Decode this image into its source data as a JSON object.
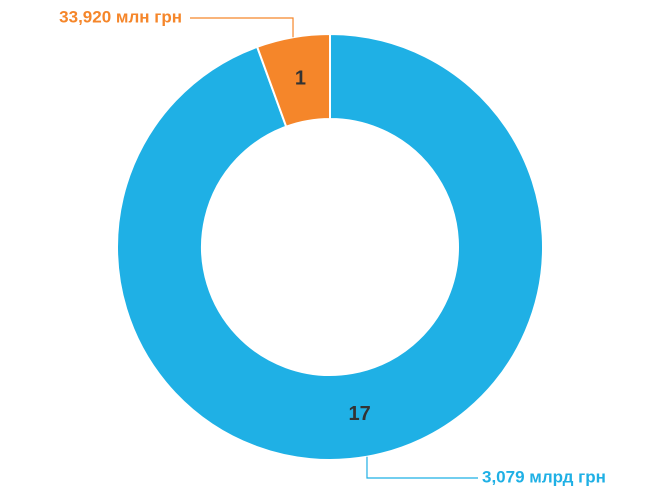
{
  "chart_data": {
    "type": "donut",
    "values": [
      17,
      1
    ],
    "labels": [
      "3,079 млрд грн",
      "33,920 млн грн"
    ],
    "colors": [
      "#1fb0e5",
      "#f5862a"
    ]
  }
}
